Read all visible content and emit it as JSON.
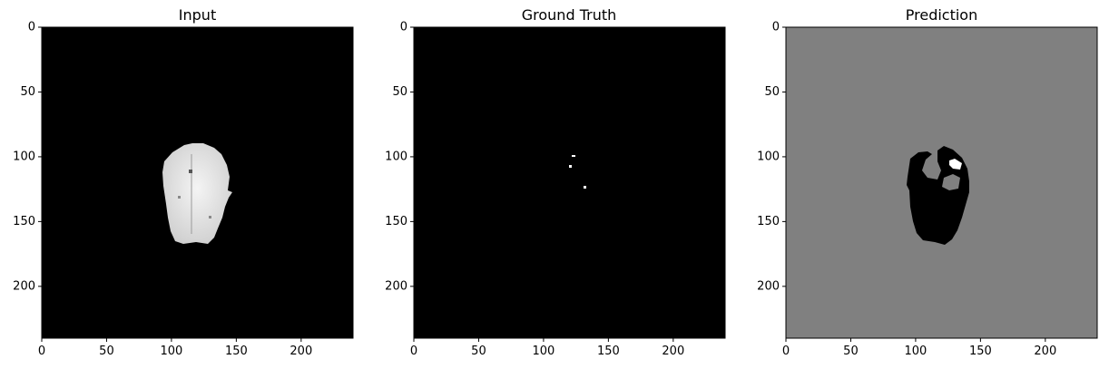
{
  "panels": [
    {
      "title": "Input",
      "background": "#000000",
      "foreground": "#e6e6e6"
    },
    {
      "title": "Ground Truth",
      "background": "#000000",
      "foreground": "#ffffff"
    },
    {
      "title": "Prediction",
      "background": "#808080",
      "foreground": "#000000",
      "highlight": "#ffffff"
    }
  ],
  "axis": {
    "xticks": [
      "0",
      "50",
      "100",
      "150",
      "200"
    ],
    "yticks": [
      "0",
      "50",
      "100",
      "150",
      "200"
    ],
    "range": [
      0,
      240
    ]
  }
}
